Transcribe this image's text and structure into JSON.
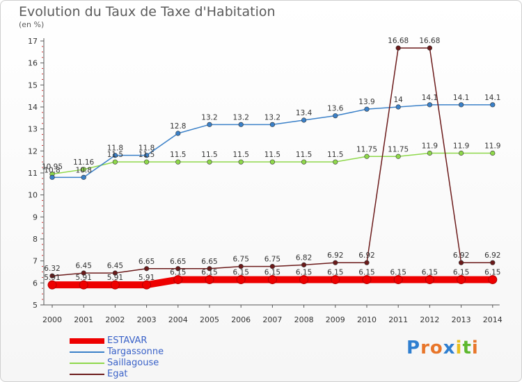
{
  "title": "Evolution du Taux de Taxe d'Habitation",
  "unit": "(en %)",
  "logo": "Proxiti",
  "chart_data": {
    "type": "line",
    "x": [
      "2000",
      "2001",
      "2002",
      "2003",
      "2004",
      "2005",
      "2006",
      "2007",
      "2008",
      "2009",
      "2010",
      "2011",
      "2012",
      "2013",
      "2014"
    ],
    "ylim": [
      5,
      17
    ],
    "yticks": [
      5,
      6,
      7,
      8,
      9,
      10,
      11,
      12,
      13,
      14,
      15,
      16,
      17
    ],
    "grid": false,
    "legend_position": "bottom-left",
    "series": [
      {
        "name": "ESTAVAR",
        "color": "#ee0000",
        "values": [
          5.91,
          5.91,
          5.91,
          5.91,
          6.15,
          6.15,
          6.15,
          6.15,
          6.15,
          6.15,
          6.15,
          6.15,
          6.15,
          6.15,
          6.15
        ]
      },
      {
        "name": "Targassonne",
        "color": "#3a80c8",
        "values": [
          10.8,
          10.8,
          11.8,
          11.8,
          12.8,
          13.2,
          13.2,
          13.2,
          13.4,
          13.6,
          13.9,
          14,
          14.1,
          14.1,
          14.1
        ]
      },
      {
        "name": "Saillagouse",
        "color": "#8ed84a",
        "values": [
          10.95,
          11.16,
          11.5,
          11.5,
          11.5,
          11.5,
          11.5,
          11.5,
          11.5,
          11.5,
          11.75,
          11.75,
          11.9,
          11.9,
          11.9
        ]
      },
      {
        "name": "Egat",
        "color": "#6b1a1a",
        "values": [
          6.32,
          6.45,
          6.45,
          6.65,
          6.65,
          6.65,
          6.75,
          6.75,
          6.82,
          6.92,
          6.92,
          16.68,
          16.68,
          6.92,
          6.92
        ]
      }
    ],
    "data_labels": [
      {
        "series": 0,
        "labels": [
          "5.91",
          "5.91",
          "5.91",
          "5.91",
          "6.15",
          "6.15",
          "6.15",
          "6.15",
          "6.15",
          "6.15",
          "6.15",
          "6.15",
          "6.15",
          "6.15",
          "6.15"
        ]
      },
      {
        "series": 1,
        "labels": [
          "10.8",
          "10.8",
          "11.8",
          "11.8",
          "12.8",
          "13.2",
          "13.2",
          "13.2",
          "13.4",
          "13.6",
          "13.9",
          "14",
          "14.1",
          "14.1",
          "14.1"
        ]
      },
      {
        "series": 2,
        "labels": [
          "10.95",
          "11.16",
          "11.5",
          "11.5",
          "11.5",
          "11.5",
          "11.5",
          "11.5",
          "11.5",
          "11.5",
          "11.75",
          "11.75",
          "11.9",
          "11.9",
          "11.9"
        ]
      },
      {
        "series": 3,
        "labels": [
          "6.32",
          "6.45",
          "6.45",
          "6.65",
          "6.65",
          "6.65",
          "6.75",
          "6.75",
          "6.82",
          "6.92",
          "6.92",
          "16.68",
          "16.68",
          "6.92",
          "6.92"
        ]
      }
    ]
  }
}
